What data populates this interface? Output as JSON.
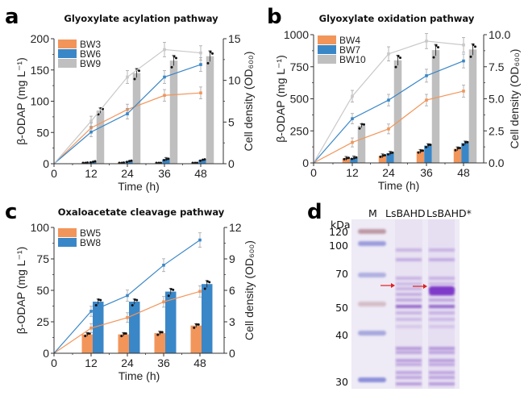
{
  "chart_data": [
    {
      "id": "a",
      "type": "bar",
      "panel_label": "a",
      "title": "Glyoxylate acylation pathway",
      "xlabel": "Time (h)",
      "ylabel": "β-ODAP (mg L⁻¹)",
      "y2label": "Cell density (OD₆₀₀)",
      "x": [
        0,
        12,
        24,
        36,
        48
      ],
      "xticks": [
        "0",
        "12",
        "24",
        "36",
        "48"
      ],
      "ylim": [
        0,
        200
      ],
      "yticks": [
        "0",
        "50",
        "100",
        "150",
        "200"
      ],
      "y2lim": [
        0,
        15
      ],
      "y2ticks": [
        "0",
        "5",
        "10",
        "15"
      ],
      "legend": "top-left",
      "bar_series": [
        {
          "name": "BW3",
          "color": "#F2955A",
          "values": [
            1,
            1,
            0.5,
            0.5
          ]
        },
        {
          "name": "BW6",
          "color": "#3A87C8",
          "values": [
            3,
            4,
            7,
            6
          ]
        },
        {
          "name": "BW9",
          "color": "#BFBFBF",
          "values": [
            85,
            145,
            165,
            172
          ]
        }
      ],
      "line_series": [
        {
          "name": "BW3",
          "color": "#F2955A",
          "values": [
            0,
            4.3,
            6.5,
            8.2,
            8.5
          ]
        },
        {
          "name": "BW6",
          "color": "#3A87C8",
          "values": [
            0,
            3.8,
            6.0,
            10.4,
            11.9
          ]
        },
        {
          "name": "BW9",
          "color": "#C8C8C8",
          "values": [
            0,
            5.1,
            10.4,
            13.7,
            13.3
          ]
        }
      ]
    },
    {
      "id": "b",
      "type": "bar",
      "panel_label": "b",
      "title": "Glyoxylate oxidation pathway",
      "xlabel": "Time (h)",
      "ylabel": "β-ODAP (mg L⁻¹)",
      "y2label": "Cell density (OD₆₀₀)",
      "x": [
        0,
        12,
        24,
        36,
        48
      ],
      "xticks": [
        "0",
        "12",
        "24",
        "36",
        "48"
      ],
      "ylim": [
        0,
        1000
      ],
      "yticks": [
        "0",
        "250",
        "500",
        "750",
        "1000"
      ],
      "y2lim": [
        0,
        10
      ],
      "y2ticks": [
        "0.0",
        "2.5",
        "5.0",
        "7.5",
        "10.0"
      ],
      "legend": "top-left",
      "bar_series": [
        {
          "name": "BW4",
          "color": "#F2955A",
          "values": [
            35,
            55,
            90,
            110
          ]
        },
        {
          "name": "BW7",
          "color": "#3A87C8",
          "values": [
            38,
            75,
            135,
            155
          ]
        },
        {
          "name": "BW10",
          "color": "#BFBFBF",
          "values": [
            290,
            800,
            880,
            885
          ]
        }
      ],
      "line_series": [
        {
          "name": "BW4",
          "color": "#F2955A",
          "values": [
            0,
            1.6,
            2.65,
            4.9,
            5.6
          ]
        },
        {
          "name": "BW7",
          "color": "#3A87C8",
          "values": [
            0,
            3.45,
            4.9,
            6.8,
            7.95
          ]
        },
        {
          "name": "BW10",
          "color": "#C8C8C8",
          "values": [
            0,
            5.2,
            8.5,
            9.5,
            9.2
          ]
        }
      ]
    },
    {
      "id": "c",
      "type": "bar",
      "panel_label": "c",
      "title": "Oxaloacetate cleavage pathway",
      "xlabel": "Time (h)",
      "ylabel": "β-ODAP (mg L⁻¹)",
      "y2label": "Cell density (OD₆₀₀)",
      "x": [
        0,
        12,
        24,
        36,
        48
      ],
      "xticks": [
        "0",
        "12",
        "24",
        "36",
        "48"
      ],
      "ylim": [
        0,
        100
      ],
      "yticks": [
        "0",
        "25",
        "50",
        "75",
        "100"
      ],
      "y2lim": [
        0,
        12
      ],
      "y2ticks": [
        "0",
        "3",
        "6",
        "9",
        "12"
      ],
      "legend": "top-left",
      "bar_series": [
        {
          "name": "BW5",
          "color": "#F2955A",
          "values": [
            15,
            15,
            16,
            22
          ]
        },
        {
          "name": "BW8",
          "color": "#3A87C8",
          "values": [
            41,
            41,
            49,
            55
          ]
        }
      ],
      "line_series": [
        {
          "name": "BW5",
          "color": "#F2955A",
          "values": [
            0,
            2.4,
            3.4,
            4.9,
            5.9
          ]
        },
        {
          "name": "BW8",
          "color": "#3A87C8",
          "values": [
            0,
            4.0,
            5.5,
            8.4,
            10.8
          ]
        }
      ]
    }
  ],
  "gel": {
    "panel_label": "d",
    "unit_label": "kDa",
    "lanes": [
      "M",
      "LsBAHD",
      "LsBAHD*"
    ],
    "markers_kda": [
      "120",
      "100",
      "70",
      "50",
      "40",
      "30"
    ],
    "arrow_color": "#E02020"
  }
}
